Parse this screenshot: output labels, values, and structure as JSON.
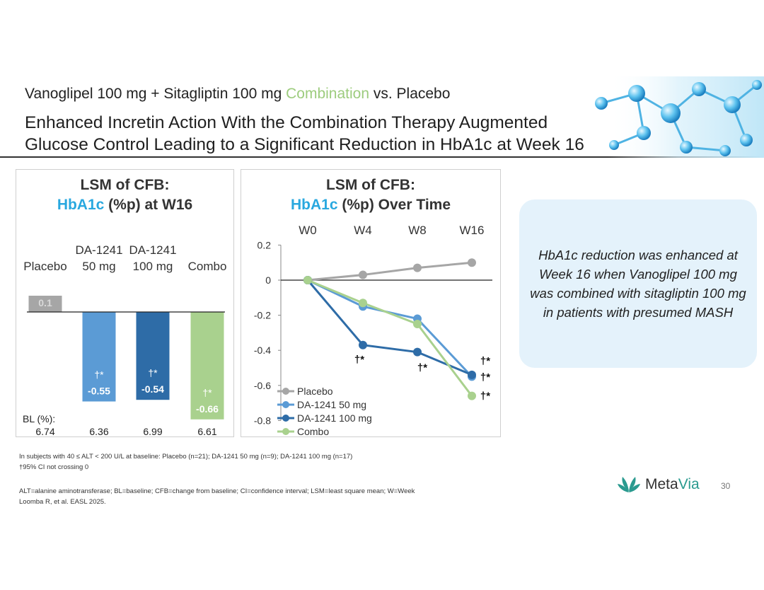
{
  "header": {
    "subtitle_part1": "Vanoglipel 100 mg + Sitagliptin 100 mg ",
    "subtitle_highlight": "Combination",
    "subtitle_part2": " vs. Placebo",
    "headline_line1": "Enhanced Incretin Action With the Combination Therapy Augmented",
    "headline_line2": "Glucose Control Leading to a Significant Reduction in HbA1c at Week 16",
    "accent_green": "#9dcc7e"
  },
  "left_panel": {
    "title_line1": "LSM of CFB:",
    "title_hl": "HbA1c",
    "title_rest": " (%p) at W16"
  },
  "right_panel": {
    "title_line1": "LSM of CFB:",
    "title_hl": "HbA1c",
    "title_rest": " (%p) Over Time"
  },
  "chart_data": [
    {
      "type": "bar",
      "title": "LSM of CFB: HbA1c (%p) at W16",
      "categories": [
        {
          "line1": "",
          "line2": "Placebo"
        },
        {
          "line1": "DA-1241",
          "line2": "50 mg"
        },
        {
          "line1": "DA-1241",
          "line2": "100 mg"
        },
        {
          "line1": "",
          "line2": "Combo"
        }
      ],
      "values": [
        0.1,
        -0.55,
        -0.54,
        -0.66
      ],
      "value_labels": [
        "0.1",
        "-0.55",
        "-0.54",
        "-0.66"
      ],
      "markers": [
        "",
        "†*",
        "†*",
        "†*"
      ],
      "colors": [
        "#a6a6a6",
        "#5b9bd5",
        "#2e6ca7",
        "#a9d18e"
      ],
      "ylim": [
        -0.75,
        0.2
      ],
      "baseline_label": "BL (%):",
      "baseline_values": [
        "6.74",
        "6.36",
        "6.99",
        "6.61"
      ]
    },
    {
      "type": "line",
      "title": "LSM of CFB: HbA1c (%p) Over Time",
      "x": [
        "W0",
        "W4",
        "W8",
        "W16"
      ],
      "ylim": [
        -0.8,
        0.2
      ],
      "yticks": [
        0.2,
        0,
        -0.2,
        -0.4,
        -0.6,
        -0.8
      ],
      "ytick_labels": [
        "0.2",
        "0",
        "-0.2",
        "-0.4",
        "-0.6",
        "-0.8"
      ],
      "series": [
        {
          "name": "Placebo",
          "values": [
            0,
            0.03,
            0.07,
            0.1
          ],
          "color": "#a6a6a6"
        },
        {
          "name": "DA-1241 50 mg",
          "values": [
            0,
            -0.15,
            -0.22,
            -0.55
          ],
          "color": "#5b9bd5"
        },
        {
          "name": "DA-1241 100 mg",
          "values": [
            0,
            -0.37,
            -0.41,
            -0.54
          ],
          "color": "#2e6ca7"
        },
        {
          "name": "Combo",
          "values": [
            0,
            -0.13,
            -0.25,
            -0.66
          ],
          "color": "#a9d18e"
        }
      ],
      "annotations": [
        "†*",
        "†*",
        "†*",
        "†*",
        "†*"
      ]
    }
  ],
  "callout": {
    "text": "HbA1c reduction was enhanced at Week 16 when Vanoglipel 100 mg was combined with sitagliptin 100 mg in patients with presumed MASH"
  },
  "footnotes": {
    "line1": "In subjects with 40 ≤ ALT < 200 U/L at baseline: Placebo (n=21); DA-1241 50 mg (n=9); DA-1241 100 mg (n=17)",
    "line2": "†95% CI not crossing 0",
    "line3": "ALT=alanine aminotransferase; BL=baseline; CFB=change from baseline; CI=confidence interval; LSM=least square mean; W=Week",
    "line4": "Loomba R, et al. EASL 2025."
  },
  "brand": {
    "name_part1": "Meta",
    "name_part2": "Via",
    "page_number": "30",
    "color": "#2a9a8f"
  }
}
